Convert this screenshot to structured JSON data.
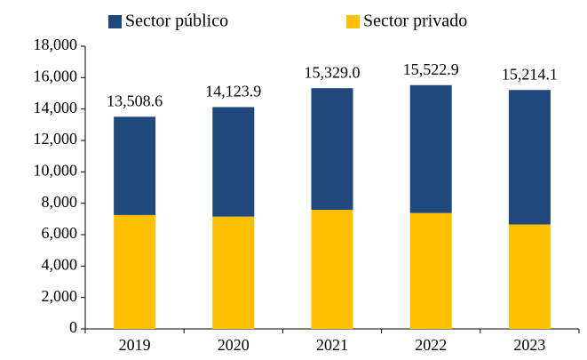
{
  "chart_data": {
    "type": "stacked_bar",
    "categories": [
      "2019",
      "2020",
      "2021",
      "2022",
      "2023"
    ],
    "series": [
      {
        "name": "Sector privado",
        "color": "#ffc000",
        "values": [
          7250,
          7150,
          7580,
          7380,
          6650
        ]
      },
      {
        "name": "Sector público",
        "color": "#1f497d",
        "values": [
          6258.6,
          6973.9,
          7749.0,
          8142.9,
          8564.1
        ]
      }
    ],
    "totals": [
      13508.6,
      14123.9,
      15329.0,
      15522.9,
      15214.1
    ],
    "total_labels": [
      "13,508.6",
      "14,123.9",
      "15,329.0",
      "15,522.9",
      "15,214.1"
    ],
    "ylim": [
      0,
      18000
    ],
    "yticks": [
      0,
      {
        "value": 2000,
        "label": "2,000"
      },
      {
        "value": 4000,
        "label": "4,000"
      },
      {
        "value": 6000,
        "label": "6,000"
      },
      {
        "value": 8000,
        "label": "8,000"
      },
      {
        "value": 10000,
        "label": "10,000"
      },
      {
        "value": 12000,
        "label": "12,000"
      },
      {
        "value": 14000,
        "label": "14,000"
      },
      {
        "value": 16000,
        "label": "16,000"
      },
      {
        "value": 18000,
        "label": "18,000"
      }
    ],
    "legend": "top"
  }
}
